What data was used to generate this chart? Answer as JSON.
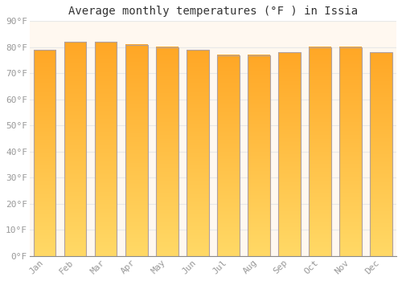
{
  "title": "Average monthly temperatures (°F ) in Issia",
  "months": [
    "Jan",
    "Feb",
    "Mar",
    "Apr",
    "May",
    "Jun",
    "Jul",
    "Aug",
    "Sep",
    "Oct",
    "Nov",
    "Dec"
  ],
  "values": [
    79,
    82,
    82,
    81,
    80,
    79,
    77,
    77,
    78,
    80,
    80,
    78
  ],
  "bar_color_light": "#FFD966",
  "bar_color_dark": "#FFA726",
  "bar_edge_color": "#B0A0A0",
  "ylim": [
    0,
    90
  ],
  "yticks": [
    0,
    10,
    20,
    30,
    40,
    50,
    60,
    70,
    80,
    90
  ],
  "ytick_labels": [
    "0°F",
    "10°F",
    "20°F",
    "30°F",
    "40°F",
    "50°F",
    "60°F",
    "70°F",
    "80°F",
    "90°F"
  ],
  "background_color": "#FFFFFF",
  "plot_bg_color": "#FFF8F0",
  "grid_color": "#E8E8E8",
  "title_fontsize": 10,
  "tick_fontsize": 8,
  "font_color": "#999999",
  "gradient_steps": 100
}
